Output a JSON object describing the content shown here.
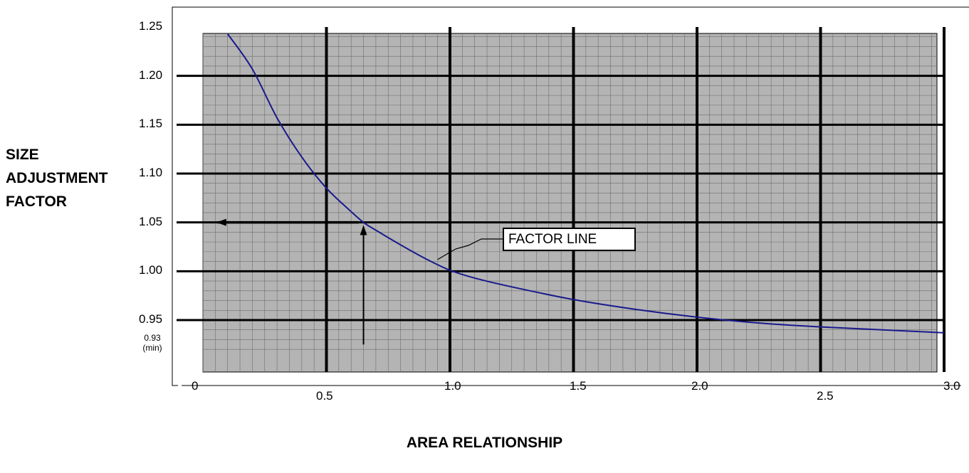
{
  "chart_data": {
    "type": "line",
    "title": "",
    "xlabel": "AREA RELATIONSHIP",
    "ylabel": [
      "SIZE",
      "ADJUSTMENT",
      "FACTOR"
    ],
    "xlim": [
      0,
      3.0
    ],
    "ylim": [
      0.92,
      1.25
    ],
    "grid": "on",
    "x_ticks": [
      {
        "value": 0,
        "label": "0"
      },
      {
        "value": 0.5,
        "label": "0.5"
      },
      {
        "value": 1.0,
        "label": "1.0"
      },
      {
        "value": 1.5,
        "label": "1.5"
      },
      {
        "value": 2.0,
        "label": "2.0"
      },
      {
        "value": 2.5,
        "label": "2.5"
      },
      {
        "value": 3.0,
        "label": "3.0"
      }
    ],
    "y_ticks": [
      {
        "value": 1.25,
        "label": "1.25"
      },
      {
        "value": 1.2,
        "label": "1.20"
      },
      {
        "value": 1.15,
        "label": "1.15"
      },
      {
        "value": 1.1,
        "label": "1.10"
      },
      {
        "value": 1.05,
        "label": "1.05"
      },
      {
        "value": 1.0,
        "label": "1.00"
      },
      {
        "value": 0.95,
        "label": "0.95"
      }
    ],
    "y_min_marker": {
      "value": 0.93,
      "label_value": "0.93",
      "label_note": "(min)"
    },
    "series": [
      {
        "color": "#1a1a8c",
        "x": [
          0.1,
          0.2,
          0.3,
          0.4,
          0.5,
          0.6,
          0.65,
          0.7,
          0.8,
          0.9,
          1.0,
          1.1,
          1.25,
          1.5,
          1.75,
          2.0,
          2.25,
          2.5,
          2.75,
          3.0
        ],
        "y": [
          1.243,
          1.207,
          1.157,
          1.117,
          1.085,
          1.061,
          1.05,
          1.042,
          1.027,
          1.013,
          1.001,
          0.993,
          0.984,
          0.971,
          0.961,
          0.953,
          0.947,
          0.943,
          0.94,
          0.937
        ]
      }
    ],
    "annotations": [
      {
        "text": "FACTOR LINE",
        "points_to": {
          "x": 0.95,
          "y": 1.012
        }
      },
      {
        "type": "arrow",
        "direction": "up",
        "x": 0.65,
        "from_y": 0.925,
        "to_y": 1.05
      },
      {
        "type": "arrow",
        "direction": "left",
        "y": 1.05,
        "from_x": 0.63,
        "to_x": 0.06
      }
    ],
    "colors": {
      "plot_background": "#b4b4b4",
      "grid_major": "#000000",
      "grid_minor": "#6e6e6e",
      "curve": "#1a1a8c"
    }
  }
}
